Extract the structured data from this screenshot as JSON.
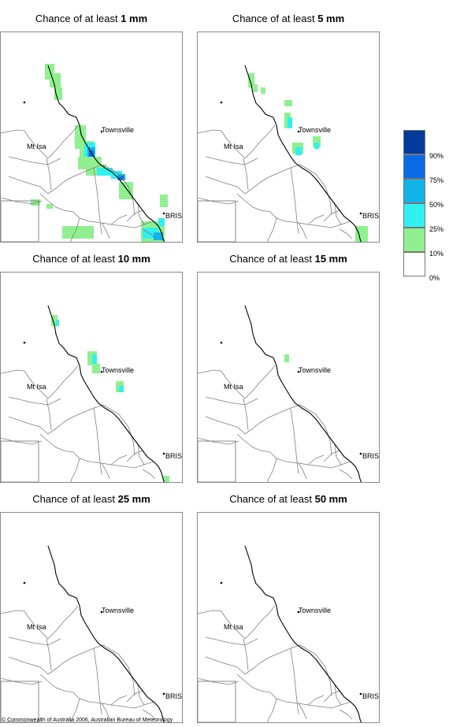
{
  "panels": [
    {
      "title_prefix": "Chance of at least ",
      "title_amount": "1 mm"
    },
    {
      "title_prefix": "Chance of at least ",
      "title_amount": "5 mm"
    },
    {
      "title_prefix": "Chance of at least ",
      "title_amount": "10 mm"
    },
    {
      "title_prefix": "Chance of at least ",
      "title_amount": "15 mm"
    },
    {
      "title_prefix": "Chance of at least ",
      "title_amount": "25 mm"
    },
    {
      "title_prefix": "Chance of at least ",
      "title_amount": "50 mm"
    }
  ],
  "places": {
    "townsville": "Townsville",
    "mt_isa": "Mt Isa",
    "brisbane": "BRIS"
  },
  "legend": {
    "labels": [
      "90%",
      "75%",
      "50%",
      "25%",
      "10%",
      "0%"
    ],
    "colors": [
      "#003a9c",
      "#0a6be6",
      "#12b4e8",
      "#30f0f0",
      "#90f090",
      "#ffffff"
    ]
  },
  "copyright": "© Commonwealth of Australia 2006, Australian Bureau of Meteorology"
}
